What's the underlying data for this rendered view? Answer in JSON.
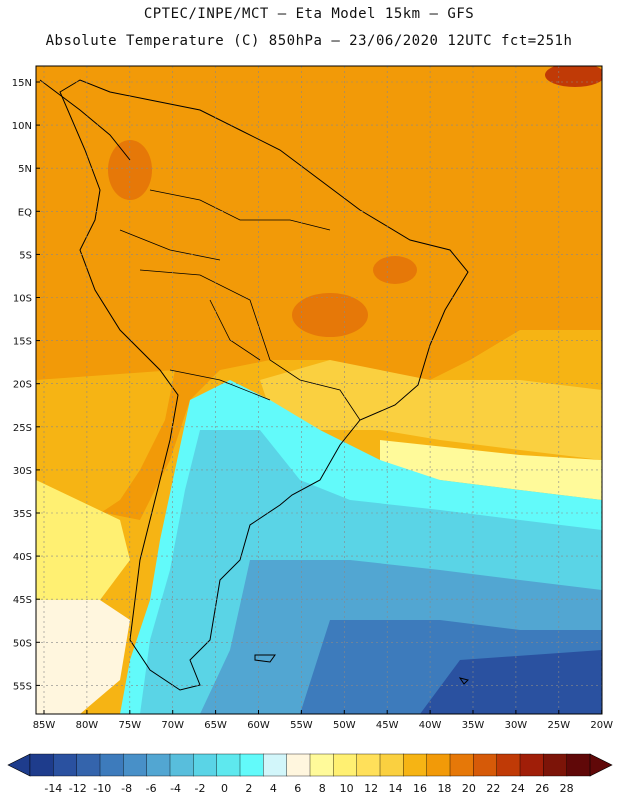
{
  "title": {
    "line1": "CPTEC/INPE/MCT –  Eta Model 15km – GFS",
    "line2": "Absolute Temperature (C) 850hPa – 23/06/2020 12UTC fct=251h"
  },
  "map": {
    "lat_labels": [
      "15N",
      "10N",
      "5N",
      "EQ",
      "5S",
      "10S",
      "15S",
      "20S",
      "25S",
      "30S",
      "35S",
      "40S",
      "45S",
      "50S",
      "55S"
    ],
    "lon_labels": [
      "85W",
      "80W",
      "75W",
      "70W",
      "65W",
      "60W",
      "55W",
      "50W",
      "45W",
      "40W",
      "35W",
      "30W",
      "25W",
      "20W"
    ]
  },
  "colorbar": {
    "labels": [
      "-14",
      "-12",
      "-10",
      "-8",
      "-6",
      "-4",
      "-2",
      "0",
      "2",
      "4",
      "6",
      "8",
      "10",
      "12",
      "14",
      "16",
      "18",
      "20",
      "22",
      "24",
      "26",
      "28"
    ],
    "colors": [
      "#1e3c8c",
      "#2a51a0",
      "#3464ac",
      "#3d7bbc",
      "#4890c8",
      "#52a6d2",
      "#58bedc",
      "#5ad4e6",
      "#5ee8ee",
      "#62fafa",
      "#d2f6fa",
      "#fff6de",
      "#fffa9a",
      "#fff072",
      "#ffe05a",
      "#fad040",
      "#f6b414",
      "#f29a08",
      "#e67808",
      "#d65a08",
      "#c03a06",
      "#a01e08",
      "#7c1408",
      "#600808"
    ]
  }
}
